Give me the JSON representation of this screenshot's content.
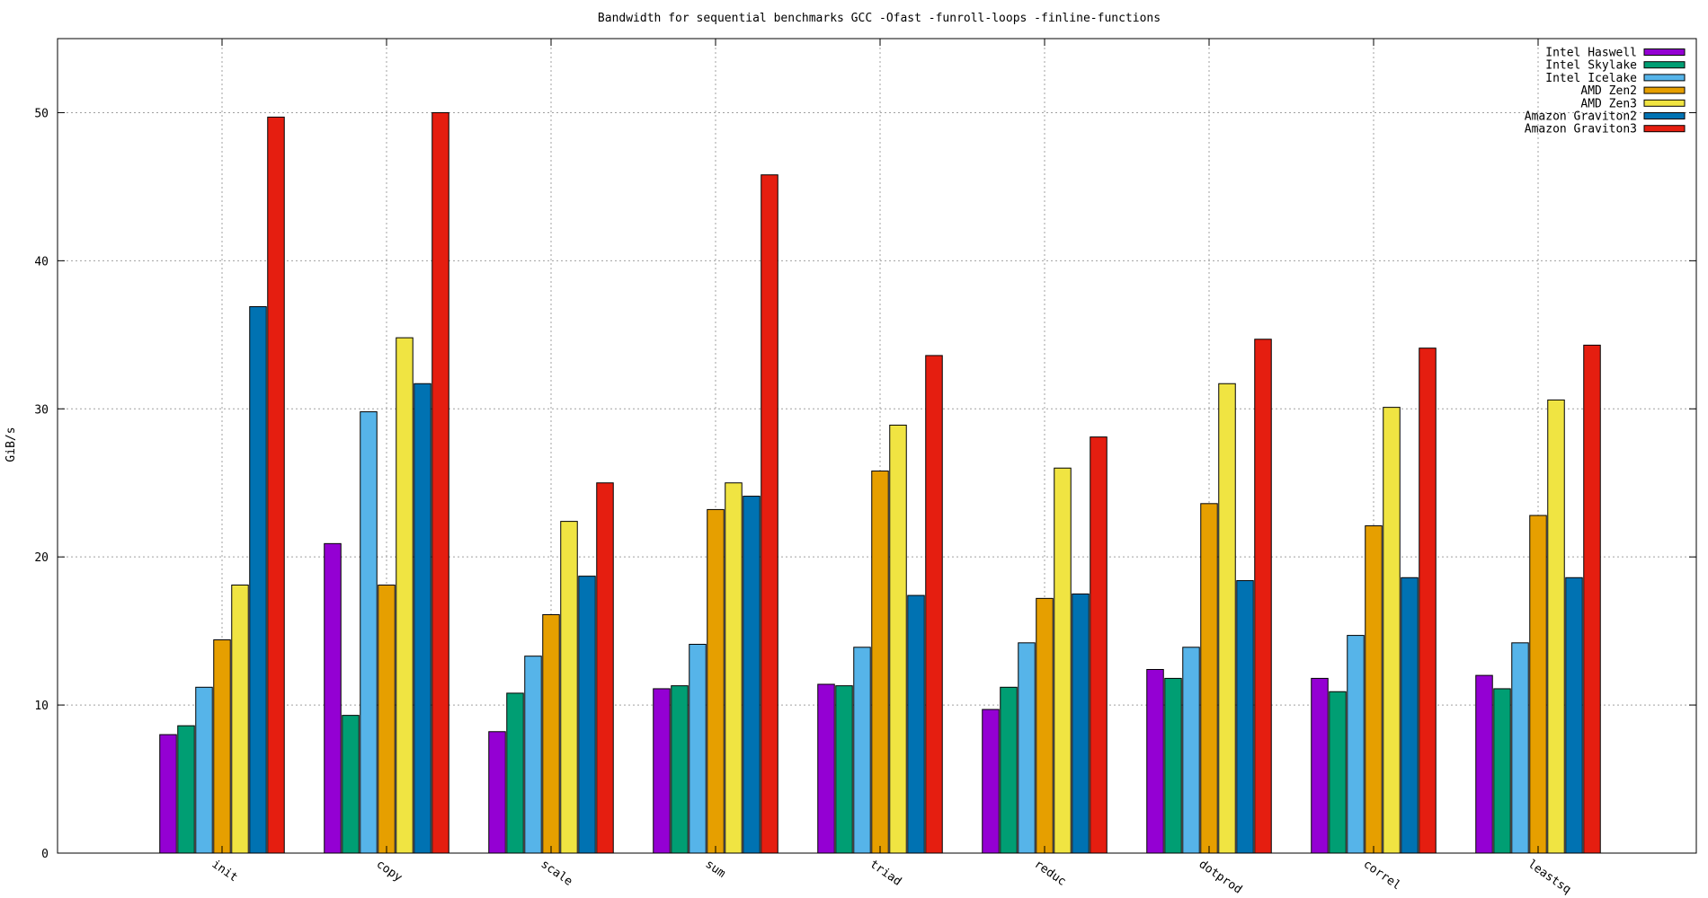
{
  "chart_data": {
    "type": "bar",
    "title": "Bandwidth for sequential benchmarks GCC -Ofast -funroll-loops -finline-functions",
    "xlabel": "",
    "ylabel": "GiB/s",
    "ylim": [
      0,
      55
    ],
    "yticks": [
      "0",
      "10",
      "20",
      "30",
      "40",
      "50"
    ],
    "grid": true,
    "legend_position": "top-right",
    "categories": [
      "init",
      "copy",
      "scale",
      "sum",
      "triad",
      "reduc",
      "dotprod",
      "correl",
      "leastsq"
    ],
    "series": [
      {
        "name": "Intel Haswell",
        "color": "#9400d3",
        "values": [
          8.0,
          20.9,
          8.2,
          11.1,
          11.4,
          9.7,
          12.4,
          11.8,
          12.0
        ]
      },
      {
        "name": "Intel Skylake",
        "color": "#009e73",
        "values": [
          8.6,
          9.3,
          10.8,
          11.3,
          11.3,
          11.2,
          11.8,
          10.9,
          11.1
        ]
      },
      {
        "name": "Intel Icelake",
        "color": "#56b4e9",
        "values": [
          11.2,
          29.8,
          13.3,
          14.1,
          13.9,
          14.2,
          13.9,
          14.7,
          14.2
        ]
      },
      {
        "name": "AMD Zen2",
        "color": "#e69f00",
        "values": [
          14.4,
          18.1,
          16.1,
          23.2,
          25.8,
          17.2,
          23.6,
          22.1,
          22.8
        ]
      },
      {
        "name": "AMD Zen3",
        "color": "#f0e442",
        "values": [
          18.1,
          34.8,
          22.4,
          25.0,
          28.9,
          26.0,
          31.7,
          30.1,
          30.6
        ]
      },
      {
        "name": "Amazon Graviton2",
        "color": "#0072b2",
        "values": [
          36.9,
          31.7,
          18.7,
          24.1,
          17.4,
          17.5,
          18.4,
          18.6,
          18.6
        ]
      },
      {
        "name": "Amazon Graviton3",
        "color": "#e51e10",
        "values": [
          49.7,
          50.0,
          25.0,
          45.8,
          33.6,
          28.1,
          34.7,
          34.1,
          34.3
        ]
      }
    ]
  }
}
